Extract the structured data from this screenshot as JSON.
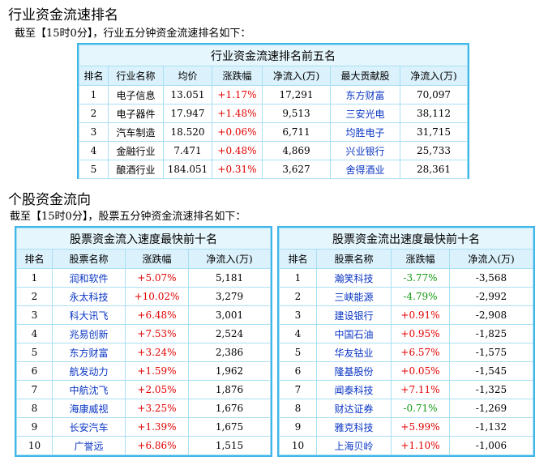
{
  "title1": "行业资金流速排名",
  "subtitle1": "截至【15时0分】，行业五分钟资金流速排名如下：",
  "industry_table": {
    "caption": "行业资金流速排名前五名",
    "headers": [
      "排名",
      "行业名称",
      "均价",
      "涨跌幅",
      "净流入(万)",
      "最大贡献股",
      "净流入(万)"
    ],
    "rows": [
      [
        "1",
        "电子信息",
        "13.051",
        "+1.17%",
        "17,291",
        "东方财富",
        "70,097"
      ],
      [
        "2",
        "电子器件",
        "17.947",
        "+1.48%",
        "9,513",
        "三安光电",
        "38,112"
      ],
      [
        "3",
        "汽车制造",
        "18.520",
        "+0.06%",
        "6,711",
        "均胜电子",
        "31,715"
      ],
      [
        "4",
        "金融行业",
        "7.471",
        "+0.48%",
        "4,869",
        "兴业银行",
        "25,733"
      ],
      [
        "5",
        "酿酒行业",
        "184.051",
        "+0.31%",
        "3,627",
        "舍得酒业",
        "28,361"
      ]
    ]
  },
  "title2": "个股资金流向",
  "subtitle2": "截至【15时0分】，股票五分钟资金流速排名如下：",
  "inflow_table": {
    "caption": "股票资金流入速度最快前十名",
    "headers": [
      "排名",
      "股票名称",
      "涨跌幅",
      "净流入(万)"
    ],
    "rows": [
      [
        "1",
        "润和软件",
        "+5.07%",
        "5,181"
      ],
      [
        "2",
        "永太科技",
        "+10.02%",
        "3,279"
      ],
      [
        "3",
        "科大讯飞",
        "+6.48%",
        "3,001"
      ],
      [
        "4",
        "兆易创新",
        "+7.53%",
        "2,524"
      ],
      [
        "5",
        "东方财富",
        "+3.24%",
        "2,386"
      ],
      [
        "6",
        "航发动力",
        "+1.59%",
        "1,962"
      ],
      [
        "7",
        "中航沈飞",
        "+2.05%",
        "1,876"
      ],
      [
        "8",
        "海康威视",
        "+3.25%",
        "1,676"
      ],
      [
        "9",
        "长安汽车",
        "+1.39%",
        "1,675"
      ],
      [
        "10",
        "广誉远",
        "+6.86%",
        "1,515"
      ]
    ]
  },
  "outflow_table": {
    "caption": "股票资金流出速度最快前十名",
    "headers": [
      "排名",
      "股票名称",
      "涨跌幅",
      "净流入(万)"
    ],
    "rows": [
      [
        "1",
        "瀚笑科技",
        "-3.77%",
        "-3,568"
      ],
      [
        "2",
        "三峡能源",
        "-4.79%",
        "-2,992"
      ],
      [
        "3",
        "建设银行",
        "+0.91%",
        "-2,908"
      ],
      [
        "4",
        "中国石油",
        "+0.95%",
        "-1,825"
      ],
      [
        "5",
        "华友钴业",
        "+6.57%",
        "-1,575"
      ],
      [
        "6",
        "隆基股份",
        "+0.05%",
        "-1,545"
      ],
      [
        "7",
        "闻泰科技",
        "+7.11%",
        "-1,325"
      ],
      [
        "8",
        "财达证券",
        "-0.71%",
        "-1,269"
      ],
      [
        "9",
        "雅克科技",
        "+5.99%",
        "-1,132"
      ],
      [
        "10",
        "上海贝岭",
        "+1.10%",
        "-1,006"
      ]
    ]
  },
  "colors": {
    "border": "#3fb6e8",
    "link": "#0a36c4",
    "up": "#e00000",
    "down": "#119a11"
  }
}
